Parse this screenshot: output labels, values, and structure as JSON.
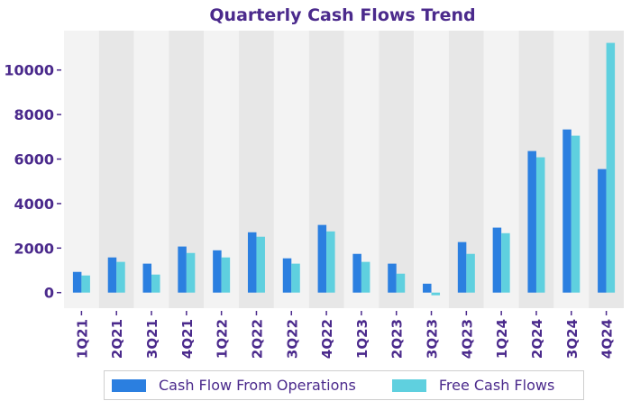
{
  "chart_data": {
    "type": "bar",
    "title": "Quarterly Cash Flows Trend",
    "xlabel": "",
    "ylabel": "",
    "categories": [
      "1Q21",
      "2Q21",
      "3Q21",
      "4Q21",
      "1Q22",
      "2Q22",
      "3Q22",
      "4Q22",
      "1Q23",
      "2Q23",
      "3Q23",
      "4Q23",
      "1Q24",
      "2Q24",
      "3Q24",
      "4Q24"
    ],
    "series": [
      {
        "name": "Cash Flow From Operations",
        "color": "#2b7fe0",
        "values": [
          930,
          1580,
          1300,
          2070,
          1900,
          2710,
          1540,
          3040,
          1740,
          1300,
          400,
          2270,
          2920,
          6360,
          7330,
          5550
        ]
      },
      {
        "name": "Free Cash Flows",
        "color": "#5fd0df",
        "values": [
          770,
          1380,
          810,
          1780,
          1580,
          2510,
          1300,
          2750,
          1380,
          850,
          -120,
          1740,
          2670,
          6080,
          7050,
          11220
        ]
      }
    ],
    "ylim": [
      -700,
      11770
    ],
    "yticks": [
      0,
      2000,
      4000,
      6000,
      8000,
      10000
    ],
    "grid": false,
    "band_colors": [
      "#f3f3f3",
      "#e7e7e7"
    ],
    "legend": "bottom-center"
  }
}
